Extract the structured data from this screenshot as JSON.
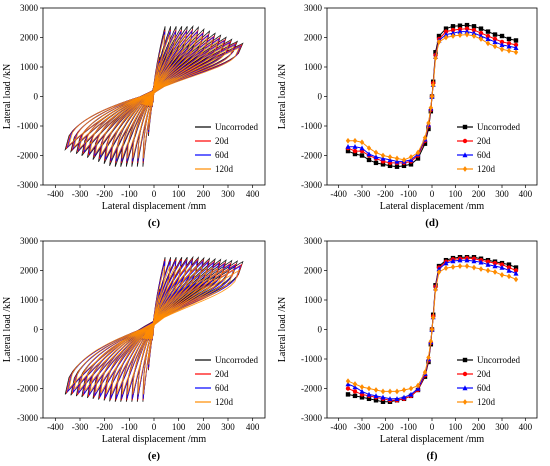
{
  "colors": {
    "Uncorroded": "#000000",
    "20d": "#ff0000",
    "60d": "#0000ff",
    "120d": "#ff8c00"
  },
  "chart_data": [
    {
      "id": "c",
      "caption": "(c)",
      "type": "line",
      "subtype": "hysteresis",
      "xlabel": "Lateral displacement /mm",
      "ylabel": "Lateral load /kN",
      "xlim": [
        -450,
        450
      ],
      "ylim": [
        -3000,
        3000
      ],
      "xticks": [
        -400,
        -300,
        -200,
        -100,
        0,
        100,
        200,
        300,
        400
      ],
      "yticks": [
        -3000,
        -2000,
        -1000,
        0,
        1000,
        2000,
        3000
      ],
      "legend_position": "bottom-right",
      "series": [
        {
          "name": "Uncorroded",
          "peak_pos": 2380,
          "peak_neg": -2380,
          "end_pos": 1800,
          "end_neg": -1800,
          "max_disp": 360
        },
        {
          "name": "20d",
          "peak_pos": 2250,
          "peak_neg": -2250,
          "end_pos": 1750,
          "end_neg": -1750,
          "max_disp": 355
        },
        {
          "name": "60d",
          "peak_pos": 2200,
          "peak_neg": -2200,
          "end_pos": 1700,
          "end_neg": -1700,
          "max_disp": 350
        },
        {
          "name": "120d",
          "peak_pos": 2100,
          "peak_neg": -2100,
          "end_pos": 1650,
          "end_neg": -1650,
          "max_disp": 345
        }
      ]
    },
    {
      "id": "d",
      "caption": "(d)",
      "type": "line",
      "subtype": "skeleton",
      "xlabel": "Lateral displacement /mm",
      "ylabel": "Lateral load /kN",
      "xlim": [
        -450,
        450
      ],
      "ylim": [
        -3000,
        3000
      ],
      "xticks": [
        -400,
        -300,
        -200,
        -100,
        0,
        100,
        200,
        300,
        400
      ],
      "yticks": [
        -3000,
        -2000,
        -1000,
        0,
        1000,
        2000,
        3000
      ],
      "legend_position": "bottom-right",
      "x": [
        -360,
        -330,
        -300,
        -270,
        -240,
        -210,
        -180,
        -150,
        -120,
        -90,
        -60,
        -30,
        -15,
        -5,
        0,
        5,
        15,
        30,
        60,
        90,
        120,
        150,
        180,
        210,
        240,
        270,
        300,
        330,
        360
      ],
      "series": [
        {
          "name": "Uncorroded",
          "marker": "square",
          "values": [
            -1850,
            -1950,
            -2000,
            -2150,
            -2250,
            -2300,
            -2350,
            -2380,
            -2350,
            -2300,
            -2100,
            -1600,
            -1100,
            -500,
            0,
            500,
            1500,
            2050,
            2300,
            2380,
            2400,
            2420,
            2380,
            2300,
            2200,
            2100,
            2050,
            1950,
            1900
          ]
        },
        {
          "name": "20d",
          "marker": "circle",
          "values": [
            -1750,
            -1850,
            -1850,
            -2000,
            -2100,
            -2200,
            -2250,
            -2250,
            -2250,
            -2200,
            -2000,
            -1500,
            -1000,
            -450,
            0,
            450,
            1400,
            1950,
            2200,
            2250,
            2280,
            2300,
            2250,
            2150,
            2050,
            1950,
            1850,
            1800,
            1750
          ]
        },
        {
          "name": "60d",
          "marker": "triangle",
          "values": [
            -1700,
            -1700,
            -1750,
            -1950,
            -2050,
            -2100,
            -2150,
            -2200,
            -2200,
            -2150,
            -1950,
            -1450,
            -950,
            -400,
            0,
            400,
            1350,
            1900,
            2100,
            2150,
            2200,
            2200,
            2150,
            2050,
            1950,
            1850,
            1750,
            1700,
            1650
          ]
        },
        {
          "name": "120d",
          "marker": "diamond",
          "values": [
            -1500,
            -1500,
            -1550,
            -1750,
            -1900,
            -2000,
            -2050,
            -2100,
            -2150,
            -2050,
            -1900,
            -1400,
            -900,
            -380,
            0,
            380,
            1300,
            1850,
            2000,
            2050,
            2080,
            2100,
            2050,
            1950,
            1800,
            1700,
            1600,
            1550,
            1500
          ]
        }
      ]
    },
    {
      "id": "e",
      "caption": "(e)",
      "type": "line",
      "subtype": "hysteresis",
      "xlabel": "Lateral displacement /mm",
      "ylabel": "Lateral load /kN",
      "xlim": [
        -450,
        450
      ],
      "ylim": [
        -3000,
        3000
      ],
      "xticks": [
        -400,
        -300,
        -200,
        -100,
        0,
        100,
        200,
        300,
        400
      ],
      "yticks": [
        -3000,
        -2000,
        -1000,
        0,
        1000,
        2000,
        3000
      ],
      "legend_position": "bottom-right",
      "series": [
        {
          "name": "Uncorroded",
          "peak_pos": 2450,
          "peak_neg": -2450,
          "end_pos": 2300,
          "end_neg": -2200,
          "max_disp": 360
        },
        {
          "name": "20d",
          "peak_pos": 2380,
          "peak_neg": -2400,
          "end_pos": 2200,
          "end_neg": -2150,
          "max_disp": 355
        },
        {
          "name": "60d",
          "peak_pos": 2320,
          "peak_neg": -2350,
          "end_pos": 2150,
          "end_neg": -2100,
          "max_disp": 350
        },
        {
          "name": "120d",
          "peak_pos": 2150,
          "peak_neg": -2200,
          "end_pos": 2000,
          "end_neg": -2000,
          "max_disp": 345
        }
      ]
    },
    {
      "id": "f",
      "caption": "(f)",
      "type": "line",
      "subtype": "skeleton",
      "xlabel": "Lateral displacement /mm",
      "ylabel": "Lateral load /kN",
      "xlim": [
        -450,
        450
      ],
      "ylim": [
        -3000,
        3000
      ],
      "xticks": [
        -400,
        -300,
        -200,
        -100,
        0,
        100,
        200,
        300,
        400
      ],
      "yticks": [
        -3000,
        -2000,
        -1000,
        0,
        1000,
        2000,
        3000
      ],
      "legend_position": "bottom-right",
      "x": [
        -360,
        -330,
        -300,
        -270,
        -240,
        -210,
        -180,
        -150,
        -120,
        -90,
        -60,
        -30,
        -15,
        -5,
        0,
        5,
        15,
        30,
        60,
        90,
        120,
        150,
        180,
        210,
        240,
        270,
        300,
        330,
        360
      ],
      "series": [
        {
          "name": "Uncorroded",
          "marker": "square",
          "values": [
            -2200,
            -2250,
            -2300,
            -2350,
            -2400,
            -2450,
            -2450,
            -2400,
            -2350,
            -2250,
            -2050,
            -1600,
            -1100,
            -500,
            0,
            500,
            1500,
            2150,
            2350,
            2420,
            2450,
            2450,
            2450,
            2400,
            2350,
            2300,
            2250,
            2200,
            2100
          ]
        },
        {
          "name": "20d",
          "marker": "circle",
          "values": [
            -2000,
            -2100,
            -2200,
            -2250,
            -2300,
            -2350,
            -2400,
            -2400,
            -2350,
            -2250,
            -2050,
            -1550,
            -1050,
            -450,
            0,
            450,
            1450,
            2100,
            2300,
            2380,
            2400,
            2420,
            2400,
            2350,
            2300,
            2250,
            2200,
            2100,
            2000
          ]
        },
        {
          "name": "60d",
          "marker": "triangle",
          "values": [
            -1850,
            -1950,
            -2100,
            -2200,
            -2250,
            -2300,
            -2350,
            -2350,
            -2300,
            -2200,
            -2000,
            -1500,
            -1000,
            -420,
            0,
            420,
            1400,
            2050,
            2250,
            2320,
            2350,
            2350,
            2320,
            2280,
            2200,
            2150,
            2100,
            2000,
            1900
          ]
        },
        {
          "name": "120d",
          "marker": "diamond",
          "values": [
            -1750,
            -1850,
            -1950,
            -2000,
            -2050,
            -2100,
            -2100,
            -2100,
            -2050,
            -2000,
            -1900,
            -1450,
            -950,
            -400,
            0,
            400,
            1350,
            1950,
            2080,
            2120,
            2150,
            2150,
            2100,
            2050,
            2000,
            1950,
            1850,
            1800,
            1700
          ]
        }
      ]
    }
  ]
}
